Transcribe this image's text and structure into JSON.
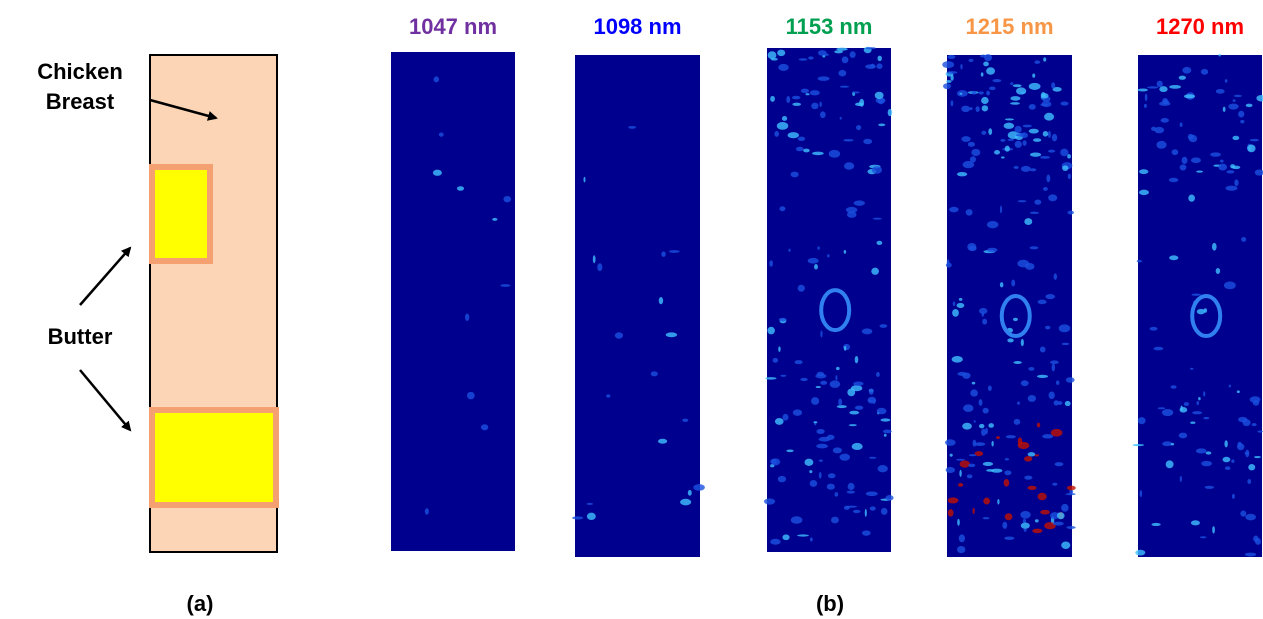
{
  "panel_a": {
    "chicken_label": [
      "Chicken",
      "Breast"
    ],
    "butter_label": "Butter",
    "caption": "(a)"
  },
  "panel_b": {
    "images": [
      {
        "label": "1047 nm",
        "color": "#7030a0"
      },
      {
        "label": "1098 nm",
        "color": "#0000ff"
      },
      {
        "label": "1153 nm",
        "color": "#00a050"
      },
      {
        "label": "1215 nm",
        "color": "#f79646"
      },
      {
        "label": "1270 nm",
        "color": "#ff0000"
      }
    ],
    "caption": "(b)"
  }
}
